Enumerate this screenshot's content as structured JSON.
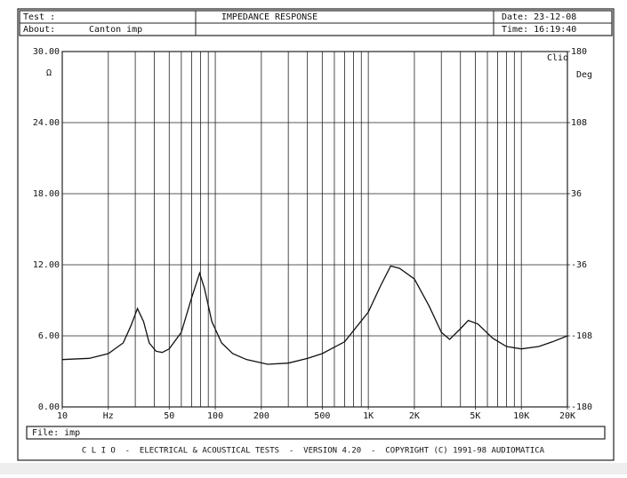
{
  "header": {
    "test": "Test :",
    "about": "About:",
    "about_value": "Canton imp",
    "date": "Date: 23-12-08",
    "time": "Time: 16:19:40"
  },
  "footer": {
    "file": "File: imp",
    "banner": "C L I O  -  ELECTRICAL & ACOUSTICAL TESTS  -  VERSION 4.20  -  COPYRIGHT (C) 1991-98 AUDIOMATICA"
  },
  "chart_data": {
    "type": "line",
    "title": "IMPEDANCE RESPONSE",
    "ylabel": "Ω",
    "y2label": "Deg",
    "annotation": "Clio",
    "xlog": true,
    "grid": true,
    "color": "#111111",
    "x": [
      10,
      15,
      20,
      25,
      28,
      31,
      34,
      37,
      41,
      45,
      50,
      60,
      70,
      79,
      85,
      95,
      110,
      130,
      160,
      220,
      300,
      400,
      500,
      700,
      1000,
      1200,
      1400,
      1600,
      2000,
      2500,
      3000,
      3400,
      4000,
      4500,
      5200,
      6500,
      8000,
      10000,
      13000,
      16000,
      20000
    ],
    "values": [
      4.0,
      4.1,
      4.5,
      5.4,
      6.8,
      8.3,
      7.2,
      5.4,
      4.7,
      4.6,
      4.9,
      6.3,
      9.2,
      11.3,
      10.0,
      7.2,
      5.4,
      4.5,
      4.0,
      3.6,
      3.7,
      4.1,
      4.5,
      5.5,
      8.0,
      10.2,
      11.9,
      11.7,
      10.8,
      8.5,
      6.3,
      5.7,
      6.6,
      7.3,
      7.0,
      5.8,
      5.1,
      4.9,
      5.1,
      5.5,
      6.0
    ],
    "xlim": [
      10,
      20000
    ],
    "xticks": [
      10,
      {
        "value": 20,
        "label": "Hz"
      },
      50,
      100,
      200,
      500,
      {
        "value": 1000,
        "label": "1K"
      },
      {
        "value": 2000,
        "label": "2K"
      },
      {
        "value": 5000,
        "label": "5K"
      },
      {
        "value": 10000,
        "label": "10K"
      },
      {
        "value": 20000,
        "label": "20K"
      }
    ],
    "xgrid": [
      20,
      30,
      40,
      50,
      60,
      70,
      80,
      90,
      100,
      200,
      300,
      400,
      500,
      600,
      700,
      800,
      900,
      1000,
      2000,
      3000,
      4000,
      5000,
      6000,
      7000,
      8000,
      9000,
      10000
    ],
    "ylim": [
      0,
      30
    ],
    "yticks": [
      {
        "value": 0,
        "label": "0.00"
      },
      {
        "value": 6,
        "label": "6.00"
      },
      {
        "value": 12,
        "label": "12.00"
      },
      {
        "value": 18,
        "label": "18.00"
      },
      {
        "value": 24,
        "label": "24.00"
      },
      {
        "value": 30,
        "label": "30.00"
      }
    ],
    "y2lim": [
      -180,
      180
    ],
    "y2ticks": [
      -180,
      -108,
      -36,
      36,
      108,
      180
    ]
  }
}
